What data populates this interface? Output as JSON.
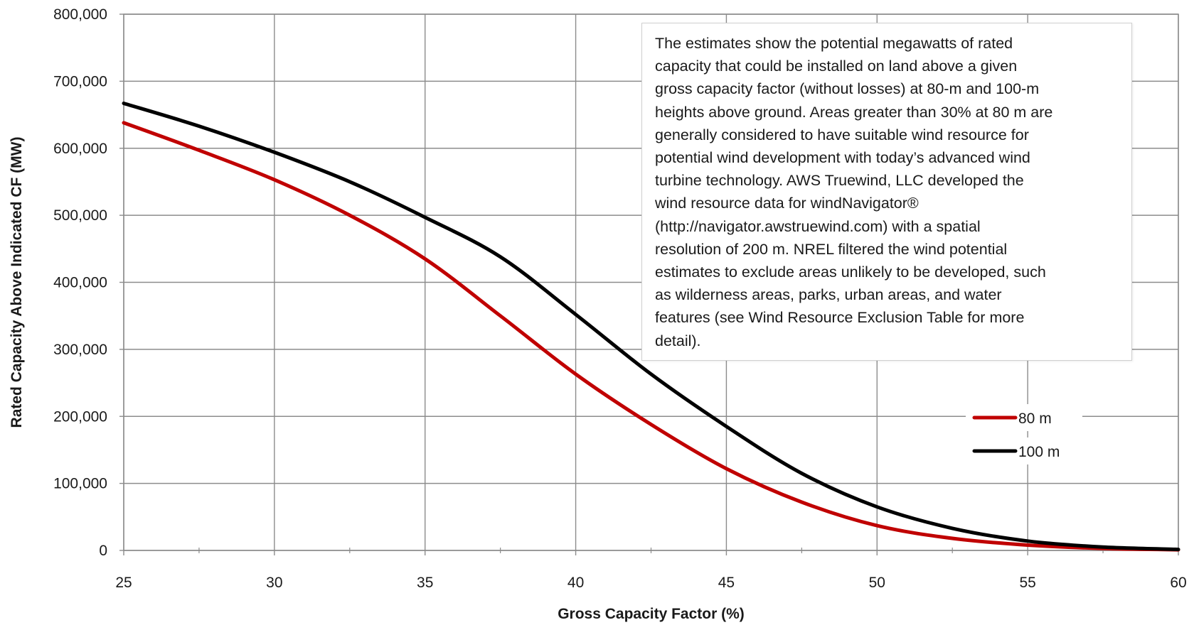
{
  "chart_data": {
    "type": "line",
    "xlabel": "Gross Capacity Factor (%)",
    "ylabel": "Rated Capacity Above Indicated CF (MW)",
    "xlim": [
      25,
      60
    ],
    "ylim": [
      0,
      800000
    ],
    "xticks": [
      25,
      30,
      35,
      40,
      45,
      50,
      55,
      60
    ],
    "xtick_labels": [
      "25",
      "30",
      "35",
      "40",
      "45",
      "50",
      "55",
      "60"
    ],
    "yticks": [
      0,
      100000,
      200000,
      300000,
      400000,
      500000,
      600000,
      700000,
      800000
    ],
    "ytick_labels": [
      "0",
      "100,000",
      "200,000",
      "300,000",
      "400,000",
      "500,000",
      "600,000",
      "700,000",
      "800,000"
    ],
    "grid": true,
    "legend": "right",
    "series": [
      {
        "name": "80 m",
        "color": "#c00000",
        "x": [
          25,
          27.5,
          30,
          32.5,
          35,
          37.5,
          40,
          42.5,
          45,
          47.5,
          50,
          52.5,
          55,
          57.5,
          60
        ],
        "y": [
          638000,
          597000,
          553000,
          500000,
          435000,
          350000,
          263000,
          188000,
          122000,
          72000,
          37000,
          18000,
          8000,
          3000,
          1000
        ]
      },
      {
        "name": "100 m",
        "color": "#000000",
        "x": [
          25,
          27.5,
          30,
          32.5,
          35,
          37.5,
          40,
          42.5,
          45,
          47.5,
          50,
          52.5,
          55,
          57.5,
          60
        ],
        "y": [
          667000,
          633000,
          594000,
          550000,
          497000,
          438000,
          352000,
          263000,
          185000,
          115000,
          65000,
          33000,
          14000,
          5000,
          1500
        ]
      }
    ],
    "annotation": "The estimates show the potential megawatts of rated\ncapacity that could be installed on land above a given\ngross capacity factor (without losses) at 80-m and 100-m\nheights above ground. Areas greater than 30% at 80 m are\ngenerally considered to have suitable wind resource for\npotential wind development with today’s advanced wind\nturbine technology. AWS Truewind, LLC developed the\nwind resource data for windNavigator®\n(http://navigator.awstruewind.com) with a spatial\nresolution of 200 m. NREL filtered the wind potential\nestimates to exclude areas unlikely to be developed, such\nas wilderness areas, parks, urban areas, and water\nfeatures (see Wind Resource Exclusion Table for more\ndetail)."
  }
}
